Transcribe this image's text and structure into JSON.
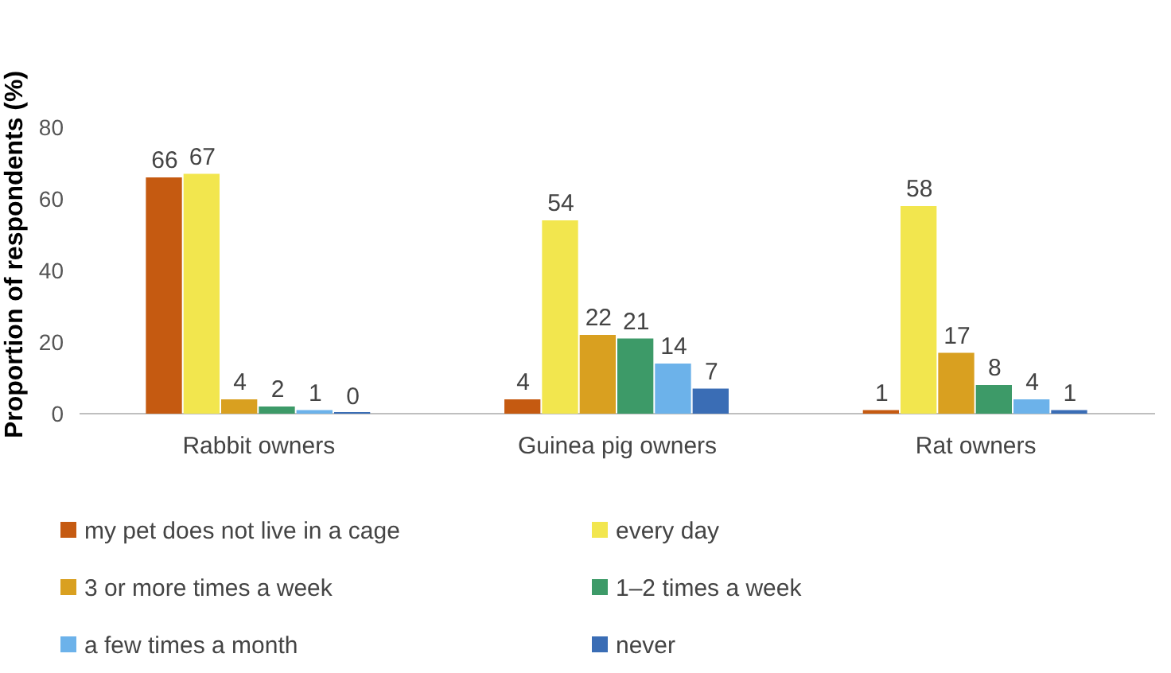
{
  "chart_data": {
    "type": "bar",
    "ylabel": "Proportion of respondents (%)",
    "categories": [
      "Rabbit owners",
      "Guinea pig owners",
      "Rat owners"
    ],
    "ylim": [
      0,
      80
    ],
    "yticks": [
      0,
      20,
      40,
      60,
      80
    ],
    "data_labels": true,
    "legend": "bottom",
    "series": [
      {
        "name": "my pet does not live in a cage",
        "color": "#c55a11",
        "values": [
          66,
          4,
          1
        ]
      },
      {
        "name": "every day",
        "color": "#f2e64e",
        "values": [
          67,
          54,
          58
        ]
      },
      {
        "name": "3 or more times a week",
        "color": "#d9a020",
        "values": [
          4,
          22,
          17
        ]
      },
      {
        "name": "1–2 times a week",
        "color": "#3d9a68",
        "values": [
          2,
          21,
          8
        ]
      },
      {
        "name": "a few times a month",
        "color": "#6cb2ea",
        "values": [
          1,
          14,
          4
        ]
      },
      {
        "name": "never",
        "color": "#3a6db5",
        "values": [
          0,
          7,
          1
        ]
      }
    ]
  }
}
